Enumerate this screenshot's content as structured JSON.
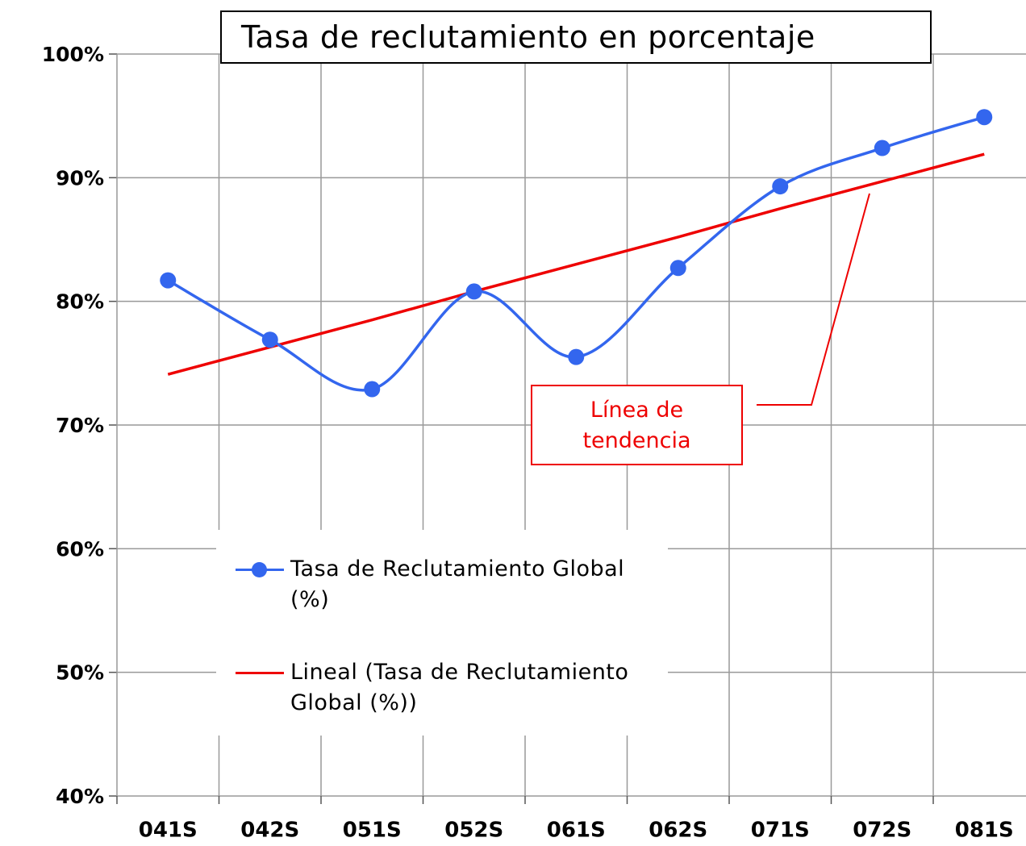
{
  "chart_data": {
    "type": "line",
    "title": "Tasa de reclutamiento en porcentaje",
    "categories": [
      "041S",
      "042S",
      "051S",
      "052S",
      "061S",
      "062S",
      "071S",
      "072S",
      "081S"
    ],
    "series": [
      {
        "name": "Tasa de Reclutamiento Global (%)",
        "color": "#3366ee",
        "values": [
          81.7,
          76.9,
          72.9,
          80.8,
          75.5,
          82.7,
          89.3,
          92.4,
          94.9
        ],
        "smooth": true,
        "markers": true
      },
      {
        "name": "Lineal (Tasa de Reclutamiento Global (%))",
        "color": "#ee0000",
        "values": [
          74.1,
          76.3,
          78.5,
          80.8,
          83.0,
          85.2,
          87.5,
          89.7,
          91.9
        ],
        "smooth": false,
        "markers": false
      }
    ],
    "ylim": [
      40,
      100
    ],
    "yticks": [
      {
        "value": 40,
        "label": "40%"
      },
      {
        "value": 50,
        "label": "50%"
      },
      {
        "value": 60,
        "label": "60%"
      },
      {
        "value": 70,
        "label": "70%"
      },
      {
        "value": 80,
        "label": "80%"
      },
      {
        "value": 90,
        "label": "90%"
      },
      {
        "value": 100,
        "label": "100%"
      }
    ],
    "grid": true,
    "annotation": "Línea de tendencia"
  }
}
